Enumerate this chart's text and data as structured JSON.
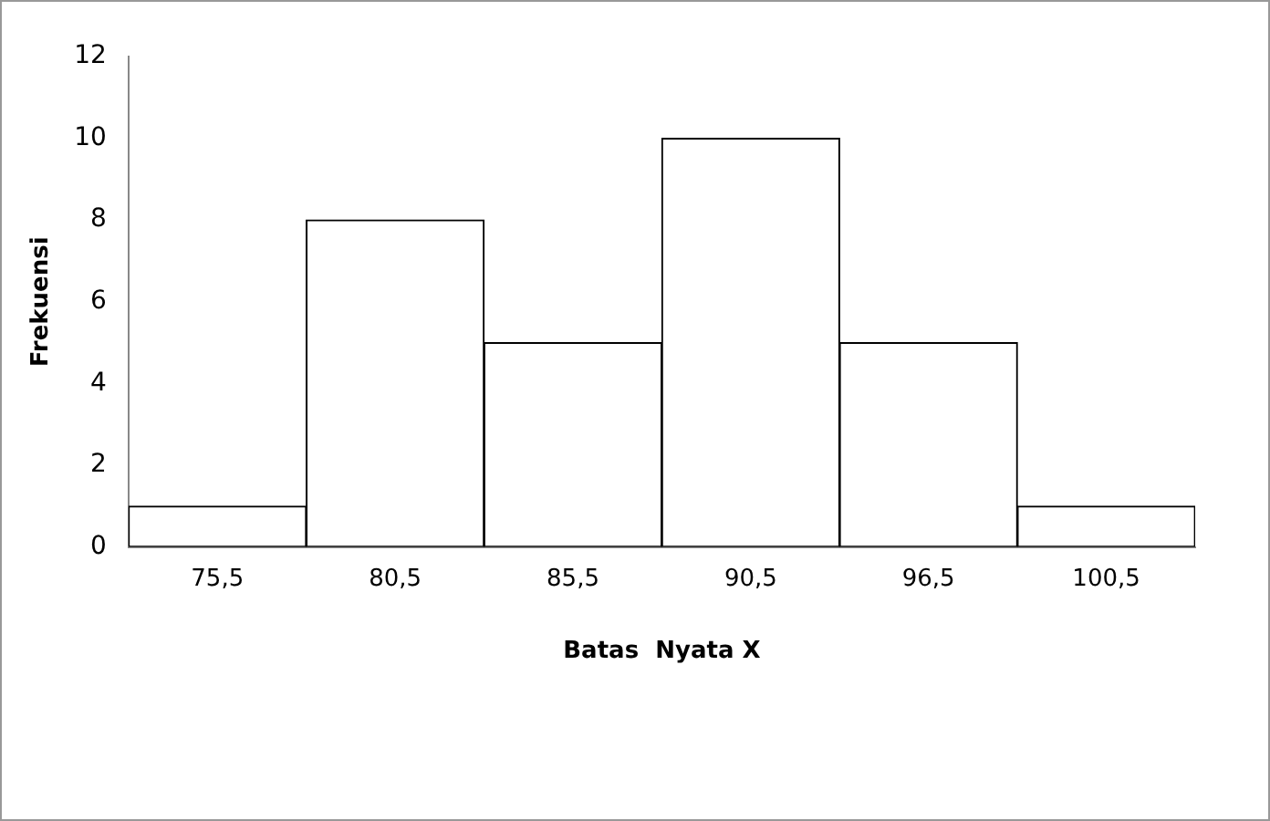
{
  "chart_data": {
    "type": "bar",
    "xlabel": "Batas  Nyata X",
    "ylabel": "Frekuensi",
    "categories": [
      "75,5",
      "80,5",
      "85,5",
      "90,5",
      "96,5",
      "100,5"
    ],
    "values": [
      1,
      8,
      5,
      10,
      5,
      1
    ],
    "color": "#ffffff",
    "ylim": [
      0,
      12
    ],
    "yticks": [
      0,
      2,
      4,
      6,
      8,
      10,
      12
    ],
    "grid": false,
    "legend": false
  }
}
